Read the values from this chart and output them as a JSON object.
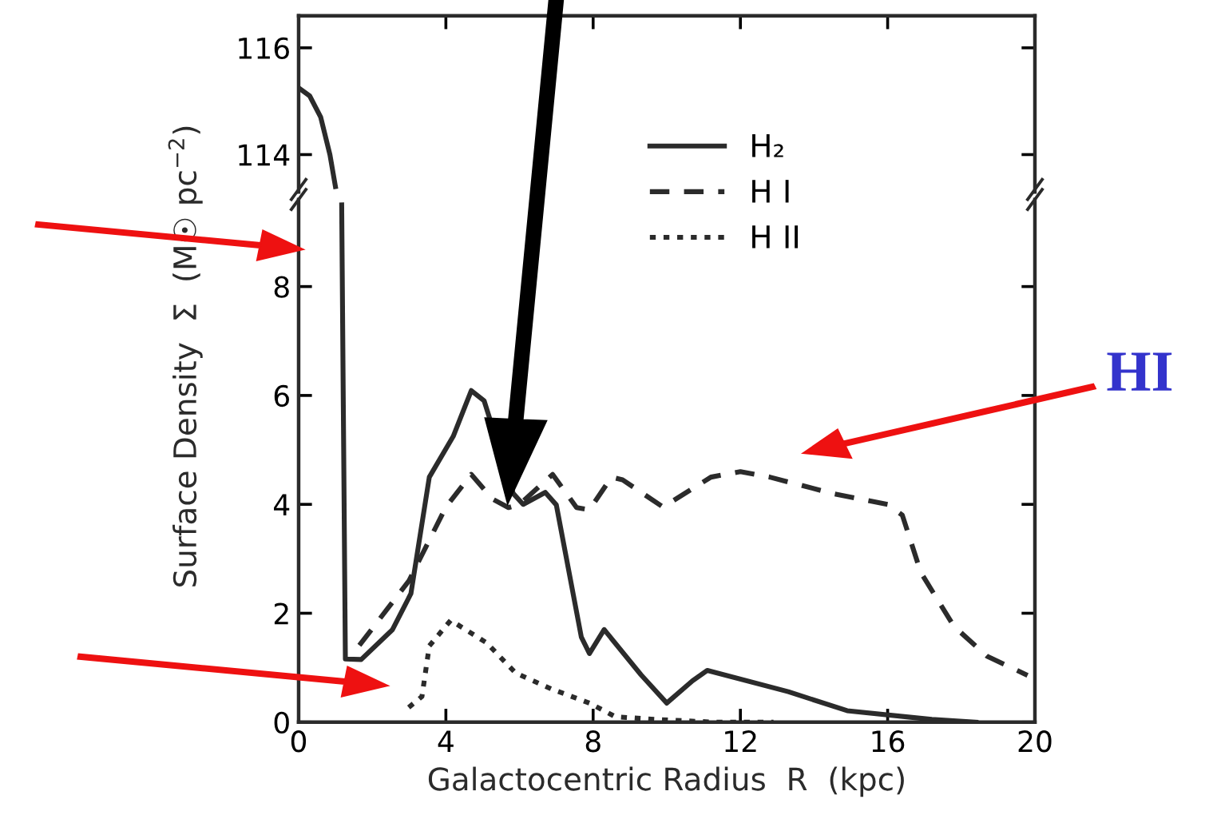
{
  "chart_data": [
    {
      "type": "line",
      "xlim": [
        0,
        20
      ],
      "ylim": [
        113.3,
        116.6
      ],
      "yticks": [
        114,
        116
      ],
      "tick_labels": "y",
      "series": [
        {
          "color": "#2b2b2b",
          "line_style": "solid",
          "x": [
            0,
            0.3,
            0.6,
            0.85,
            1.0
          ],
          "values": [
            115.25,
            115.1,
            114.7,
            114.0,
            113.4
          ]
        }
      ]
    },
    {
      "type": "line",
      "xlim": [
        0,
        20
      ],
      "ylim": [
        0,
        9.6
      ],
      "xticks": [
        0,
        4,
        8,
        12,
        16,
        20
      ],
      "yticks": [
        0,
        2,
        4,
        6,
        8
      ],
      "xlabel": "Galactocentric Radius  R  (kpc)",
      "ylabel": "Surface Density  Σ  (M☉ pc$^{−2}$)",
      "legend": "top right",
      "annotations": [
        "HI"
      ],
      "series": [
        {
          "name": "H₂",
          "color": "#2b2b2b",
          "line_style": "solid",
          "x": [
            1.17,
            1.27,
            1.7,
            2.55,
            3.05,
            3.55,
            4.2,
            4.69,
            5.04,
            5.83,
            6.1,
            6.7,
            7.0,
            7.68,
            7.9,
            8.3,
            9.3,
            10.0,
            10.7,
            11.1,
            13.3,
            14.9,
            17.2,
            18.4
          ],
          "values": [
            9.5,
            1.16,
            1.15,
            1.7,
            2.36,
            4.5,
            5.25,
            6.09,
            5.9,
            4.2,
            4.0,
            4.22,
            3.99,
            1.56,
            1.26,
            1.7,
            0.87,
            0.35,
            0.76,
            0.95,
            0.56,
            0.21,
            0.05,
            0
          ]
        },
        {
          "name": "H I",
          "color": "#2b2b2b",
          "line_style": "dashed",
          "x": [
            1.65,
            3.0,
            4.0,
            4.69,
            5.26,
            5.7,
            6.0,
            6.9,
            7.55,
            7.9,
            8.5,
            8.8,
            9.9,
            11.2,
            12.0,
            12.8,
            14.5,
            16.0,
            16.4,
            16.9,
            17.8,
            18.7,
            19.8
          ],
          "values": [
            1.41,
            2.6,
            3.95,
            4.55,
            4.1,
            3.94,
            4.0,
            4.55,
            3.94,
            3.9,
            4.5,
            4.45,
            3.95,
            4.5,
            4.6,
            4.5,
            4.2,
            4.0,
            3.8,
            2.75,
            1.76,
            1.21,
            0.86
          ]
        },
        {
          "name": "H II",
          "color": "#2b2b2b",
          "line_style": "dotted",
          "x": [
            2.99,
            3.35,
            3.55,
            4.13,
            5.1,
            5.9,
            6.9,
            7.9,
            8.6,
            9.7,
            11.25,
            12.9
          ],
          "values": [
            0.27,
            0.47,
            1.4,
            1.87,
            1.46,
            0.9,
            0.6,
            0.35,
            0.1,
            0.05,
            0.0,
            0.0
          ]
        }
      ]
    }
  ]
}
